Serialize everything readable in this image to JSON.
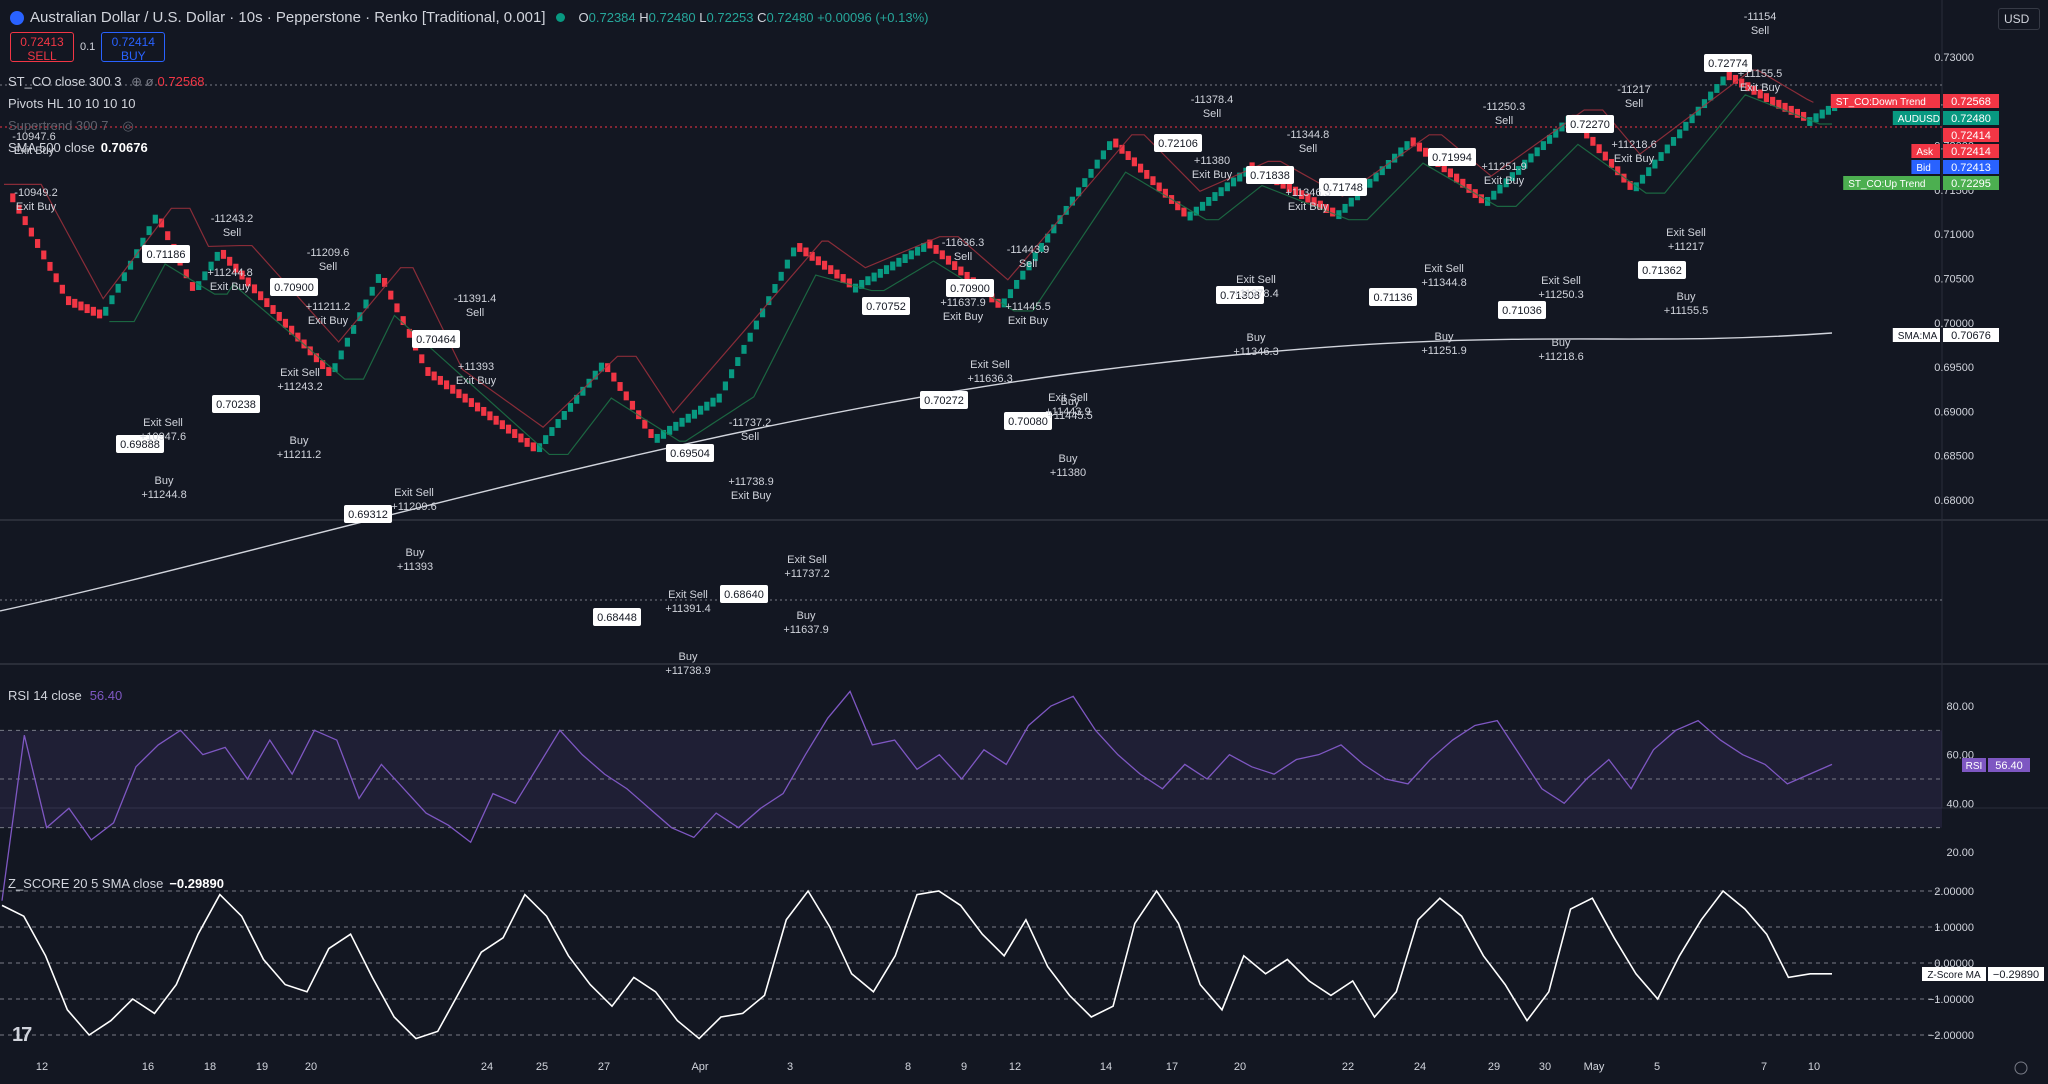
{
  "header": {
    "symbol_title": "Australian Dollar / U.S. Dollar · 10s · Pepperstone · Renko [Traditional, 0.001]",
    "open_label": "O",
    "open": "0.72384",
    "high_label": "H",
    "high": "0.72480",
    "low_label": "L",
    "low": "0.72253",
    "close_label": "C",
    "close": "0.72480",
    "change": "+0.00096 (+0.13%)"
  },
  "trade": {
    "sell_price": "0.72413",
    "sell_label": "SELL",
    "spread": "0.1",
    "buy_price": "0.72414",
    "buy_label": "BUY"
  },
  "currency_button": "USD",
  "legends": {
    "st_co": "ST_CO close 300 3",
    "st_co_value": "0.72568",
    "pivots": "Pivots HL 10 10 10 10",
    "supertrend": "Supertrend 300 7",
    "sma": "SMA 500 close",
    "sma_value": "0.70676",
    "rsi": "RSI 14 close",
    "rsi_value": "56.40",
    "zscore": "Z_SCORE 20 5 SMA close",
    "zscore_value": "−0.29890"
  },
  "price_axis": {
    "ticks": [
      "0.73000",
      "0.72500",
      "0.72000",
      "0.71500",
      "0.71000",
      "0.70500",
      "0.70000",
      "0.69500",
      "0.69000",
      "0.68500",
      "0.68000"
    ],
    "labels": [
      {
        "text": "ST_CO:Down Trend",
        "value": "0.72568",
        "color": "#f23645"
      },
      {
        "text": "AUDUSD",
        "value": "0.72480",
        "color": "#089981"
      },
      {
        "text": "",
        "value": "0.72414",
        "color": "#f23645"
      },
      {
        "text": "Ask",
        "value": "0.72414",
        "color": "#f23645"
      },
      {
        "text": "Bid",
        "value": "0.72413",
        "color": "#2962ff"
      },
      {
        "text": "ST_CO:Up Trend",
        "value": "0.72295",
        "color": "#4caf50"
      },
      {
        "text": "SMA:MA",
        "value": "0.70676",
        "color": "#ffffff"
      }
    ]
  },
  "rsi_axis": {
    "ticks": [
      "80.00",
      "60.00",
      "40.00",
      "20.00"
    ],
    "label_text": "RSI",
    "label_value": "56.40"
  },
  "z_axis": {
    "ticks": [
      "2.00000",
      "1.00000",
      "0.00000",
      "−1.00000",
      "−2.00000"
    ],
    "label_text": "Z-Score MA",
    "label_value": "−0.29890"
  },
  "time_axis": [
    "12",
    "16",
    "18",
    "19",
    "20",
    "24",
    "25",
    "27",
    "Apr",
    "3",
    "8",
    "9",
    "12",
    "14",
    "17",
    "20",
    "22",
    "24",
    "29",
    "30",
    "May",
    "5",
    "7",
    "10"
  ],
  "pivot_boxes": [
    "0.71186",
    "0.70900",
    "0.70238",
    "0.69888",
    "0.70464",
    "0.69312",
    "0.68448",
    "0.69504",
    "0.68640",
    "0.70752",
    "0.70900",
    "0.70272",
    "0.70080",
    "0.72106",
    "0.71838",
    "0.71748",
    "0.71308",
    "0.71136",
    "0.71994",
    "0.72270",
    "0.71036",
    "0.72774",
    "0.71362"
  ],
  "signals": [
    {
      "t": "-10947.6",
      "s": "Exit Buy"
    },
    {
      "t": "-10949.2",
      "s": "Exit Buy"
    },
    {
      "t": "-11243.2",
      "s": "Sell"
    },
    {
      "t": "+11244.8",
      "s": "Exit Buy"
    },
    {
      "t": "-11209.6",
      "s": "Sell"
    },
    {
      "t": "+11211.2",
      "s": "Exit Buy"
    },
    {
      "t": "Exit Sell",
      "s": "+11243.2"
    },
    {
      "t": "Buy",
      "s": "+11211.2"
    },
    {
      "t": "Exit Sell",
      "s": "+10947.6"
    },
    {
      "t": "Buy",
      "s": "+11244.8"
    },
    {
      "t": "-11391.4",
      "s": "Sell"
    },
    {
      "t": "+11393",
      "s": "Exit Buy"
    },
    {
      "t": "Exit Sell",
      "s": "+11209.6"
    },
    {
      "t": "Buy",
      "s": "+11393"
    },
    {
      "t": "Exit Sell",
      "s": "+11391.4"
    },
    {
      "t": "Buy",
      "s": "+11738.9"
    },
    {
      "t": "-11737.2",
      "s": "Sell"
    },
    {
      "t": "+11738.9",
      "s": "Exit Buy"
    },
    {
      "t": "Exit Sell",
      "s": "+11737.2"
    },
    {
      "t": "Buy",
      "s": "+11637.9"
    },
    {
      "t": "-11636.3",
      "s": "Sell"
    },
    {
      "t": "+11637.9",
      "s": "Exit Buy"
    },
    {
      "t": "-11443.9",
      "s": "Sell"
    },
    {
      "t": "+11445.5",
      "s": "Exit Buy"
    },
    {
      "t": "Exit Sell",
      "s": "+11636.3"
    },
    {
      "t": "Buy",
      "s": "+11445.5"
    },
    {
      "t": "Exit Sell",
      "s": "+11443.9"
    },
    {
      "t": "Buy",
      "s": "+11380"
    },
    {
      "t": "-11378.4",
      "s": "Sell"
    },
    {
      "t": "+11380",
      "s": "Exit Buy"
    },
    {
      "t": "-11344.8",
      "s": "Sell"
    },
    {
      "t": "+11346.3",
      "s": "Exit Buy"
    },
    {
      "t": "Exit Sell",
      "s": "+11378.4"
    },
    {
      "t": "Buy",
      "s": "+11346.3"
    },
    {
      "t": "Exit Sell",
      "s": "+11344.8"
    },
    {
      "t": "Buy",
      "s": "+11251.9"
    },
    {
      "t": "-11250.3",
      "s": "Sell"
    },
    {
      "t": "+11251.9",
      "s": "Exit Buy"
    },
    {
      "t": "Exit Sell",
      "s": "+11250.3"
    },
    {
      "t": "Buy",
      "s": "+11218.6"
    },
    {
      "t": "-11217",
      "s": "Sell"
    },
    {
      "t": "+11218.6",
      "s": "Exit Buy"
    },
    {
      "t": "Exit Sell",
      "s": "+11217"
    },
    {
      "t": "Buy",
      "s": "+11155.5"
    },
    {
      "t": "-11154",
      "s": "Sell"
    },
    {
      "t": "+11155.5",
      "s": "Exit Buy"
    }
  ],
  "colors": {
    "background": "#131722",
    "bull": "#089981",
    "bear": "#f23645",
    "down_band": "#8b1e2c",
    "up_band": "#1b5e3a",
    "rsi": "#7e57c2",
    "signal_arrow": "#e040fb"
  }
}
